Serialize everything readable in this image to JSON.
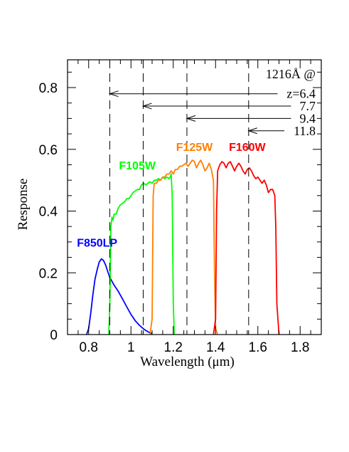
{
  "chart_data": {
    "type": "line",
    "xlabel": "Wavelength (μm)",
    "ylabel": "Response",
    "xlim": [
      0.7,
      1.9
    ],
    "ylim": [
      0,
      0.89
    ],
    "x_ticks": [
      0.8,
      1,
      1.2,
      1.4,
      1.6,
      1.8
    ],
    "x_tick_labels": [
      "0.8",
      "1",
      "1.2",
      "1.4",
      "1.6",
      "1.8"
    ],
    "y_ticks": [
      0,
      0.2,
      0.4,
      0.6,
      0.8
    ],
    "y_tick_labels": [
      "0",
      "0.2",
      "0.4",
      "0.6",
      "0.8"
    ],
    "grid": false,
    "series": [
      {
        "name": "F850LP",
        "color": "#0000ff",
        "points": [
          [
            0.79,
            0.0
          ],
          [
            0.8,
            0.02
          ],
          [
            0.81,
            0.07
          ],
          [
            0.82,
            0.13
          ],
          [
            0.83,
            0.18
          ],
          [
            0.84,
            0.21
          ],
          [
            0.85,
            0.235
          ],
          [
            0.86,
            0.245
          ],
          [
            0.87,
            0.24
          ],
          [
            0.88,
            0.225
          ],
          [
            0.89,
            0.205
          ],
          [
            0.9,
            0.185
          ],
          [
            0.92,
            0.16
          ],
          [
            0.94,
            0.14
          ],
          [
            0.96,
            0.115
          ],
          [
            0.98,
            0.09
          ],
          [
            1.0,
            0.065
          ],
          [
            1.02,
            0.045
          ],
          [
            1.04,
            0.03
          ],
          [
            1.06,
            0.018
          ],
          [
            1.08,
            0.009
          ],
          [
            1.1,
            0.003
          ]
        ]
      },
      {
        "name": "F105W",
        "color": "#00ff00",
        "points": [
          [
            0.895,
            0.0
          ],
          [
            0.9,
            0.1
          ],
          [
            0.905,
            0.35
          ],
          [
            0.91,
            0.38
          ],
          [
            0.915,
            0.37
          ],
          [
            0.92,
            0.39
          ],
          [
            0.93,
            0.39
          ],
          [
            0.94,
            0.41
          ],
          [
            0.95,
            0.42
          ],
          [
            0.96,
            0.425
          ],
          [
            0.97,
            0.43
          ],
          [
            0.98,
            0.44
          ],
          [
            0.99,
            0.44
          ],
          [
            1.0,
            0.45
          ],
          [
            1.01,
            0.46
          ],
          [
            1.02,
            0.465
          ],
          [
            1.03,
            0.47
          ],
          [
            1.04,
            0.47
          ],
          [
            1.05,
            0.485
          ],
          [
            1.06,
            0.49
          ],
          [
            1.07,
            0.485
          ],
          [
            1.08,
            0.49
          ],
          [
            1.09,
            0.495
          ],
          [
            1.1,
            0.49
          ],
          [
            1.11,
            0.5
          ],
          [
            1.12,
            0.5
          ],
          [
            1.13,
            0.505
          ],
          [
            1.14,
            0.5
          ],
          [
            1.15,
            0.51
          ],
          [
            1.16,
            0.505
          ],
          [
            1.17,
            0.51
          ],
          [
            1.18,
            0.505
          ],
          [
            1.185,
            0.51
          ],
          [
            1.19,
            0.52
          ],
          [
            1.195,
            0.45
          ],
          [
            1.2,
            0.1
          ],
          [
            1.205,
            0.0
          ]
        ]
      },
      {
        "name": "F125W",
        "color": "#ff8000",
        "points": [
          [
            1.09,
            0.0
          ],
          [
            1.1,
            0.05
          ],
          [
            1.105,
            0.45
          ],
          [
            1.11,
            0.49
          ],
          [
            1.12,
            0.49
          ],
          [
            1.13,
            0.5
          ],
          [
            1.14,
            0.5
          ],
          [
            1.15,
            0.51
          ],
          [
            1.16,
            0.51
          ],
          [
            1.17,
            0.52
          ],
          [
            1.18,
            0.52
          ],
          [
            1.19,
            0.53
          ],
          [
            1.2,
            0.52
          ],
          [
            1.21,
            0.535
          ],
          [
            1.22,
            0.535
          ],
          [
            1.23,
            0.545
          ],
          [
            1.24,
            0.545
          ],
          [
            1.25,
            0.55
          ],
          [
            1.26,
            0.555
          ],
          [
            1.27,
            0.545
          ],
          [
            1.28,
            0.555
          ],
          [
            1.29,
            0.565
          ],
          [
            1.3,
            0.56
          ],
          [
            1.31,
            0.54
          ],
          [
            1.32,
            0.555
          ],
          [
            1.33,
            0.565
          ],
          [
            1.34,
            0.55
          ],
          [
            1.35,
            0.53
          ],
          [
            1.36,
            0.54
          ],
          [
            1.37,
            0.555
          ],
          [
            1.38,
            0.535
          ],
          [
            1.39,
            0.5
          ],
          [
            1.395,
            0.2
          ],
          [
            1.4,
            0.02
          ],
          [
            1.41,
            0.0
          ]
        ]
      },
      {
        "name": "F160W",
        "color": "#ff0000",
        "points": [
          [
            1.39,
            0.0
          ],
          [
            1.4,
            0.05
          ],
          [
            1.405,
            0.4
          ],
          [
            1.41,
            0.53
          ],
          [
            1.42,
            0.55
          ],
          [
            1.43,
            0.56
          ],
          [
            1.44,
            0.555
          ],
          [
            1.45,
            0.54
          ],
          [
            1.46,
            0.555
          ],
          [
            1.47,
            0.56
          ],
          [
            1.48,
            0.545
          ],
          [
            1.49,
            0.53
          ],
          [
            1.5,
            0.545
          ],
          [
            1.51,
            0.555
          ],
          [
            1.52,
            0.545
          ],
          [
            1.53,
            0.53
          ],
          [
            1.54,
            0.52
          ],
          [
            1.55,
            0.535
          ],
          [
            1.56,
            0.54
          ],
          [
            1.57,
            0.53
          ],
          [
            1.58,
            0.515
          ],
          [
            1.59,
            0.505
          ],
          [
            1.6,
            0.51
          ],
          [
            1.61,
            0.5
          ],
          [
            1.62,
            0.49
          ],
          [
            1.63,
            0.5
          ],
          [
            1.64,
            0.485
          ],
          [
            1.65,
            0.46
          ],
          [
            1.66,
            0.47
          ],
          [
            1.67,
            0.47
          ],
          [
            1.68,
            0.45
          ],
          [
            1.685,
            0.35
          ],
          [
            1.69,
            0.1
          ],
          [
            1.7,
            0.0
          ]
        ]
      }
    ],
    "vertical_lines": [
      {
        "x": 0.8998,
        "style": "dashed"
      },
      {
        "x": 1.0579,
        "style": "dashed"
      },
      {
        "x": 1.2646,
        "style": "dashed"
      },
      {
        "x": 1.5565,
        "style": "dashed"
      }
    ],
    "annotations": [
      {
        "text": "z=6.4",
        "arrow_to_x": 0.8998,
        "y": 0.78
      },
      {
        "text": "7.7",
        "arrow_to_x": 1.0579,
        "y": 0.74
      },
      {
        "text": "9.4",
        "arrow_to_x": 1.2646,
        "y": 0.7
      },
      {
        "text": "11.8",
        "arrow_to_x": 1.5565,
        "y": 0.66
      }
    ],
    "annotation_header": "1216Å @",
    "series_label_positions": [
      {
        "series": "F850LP",
        "x": 0.84,
        "y": 0.285
      },
      {
        "series": "F105W",
        "x": 1.03,
        "y": 0.535
      },
      {
        "series": "F125W",
        "x": 1.3,
        "y": 0.595
      },
      {
        "series": "F160W",
        "x": 1.55,
        "y": 0.595
      }
    ]
  }
}
